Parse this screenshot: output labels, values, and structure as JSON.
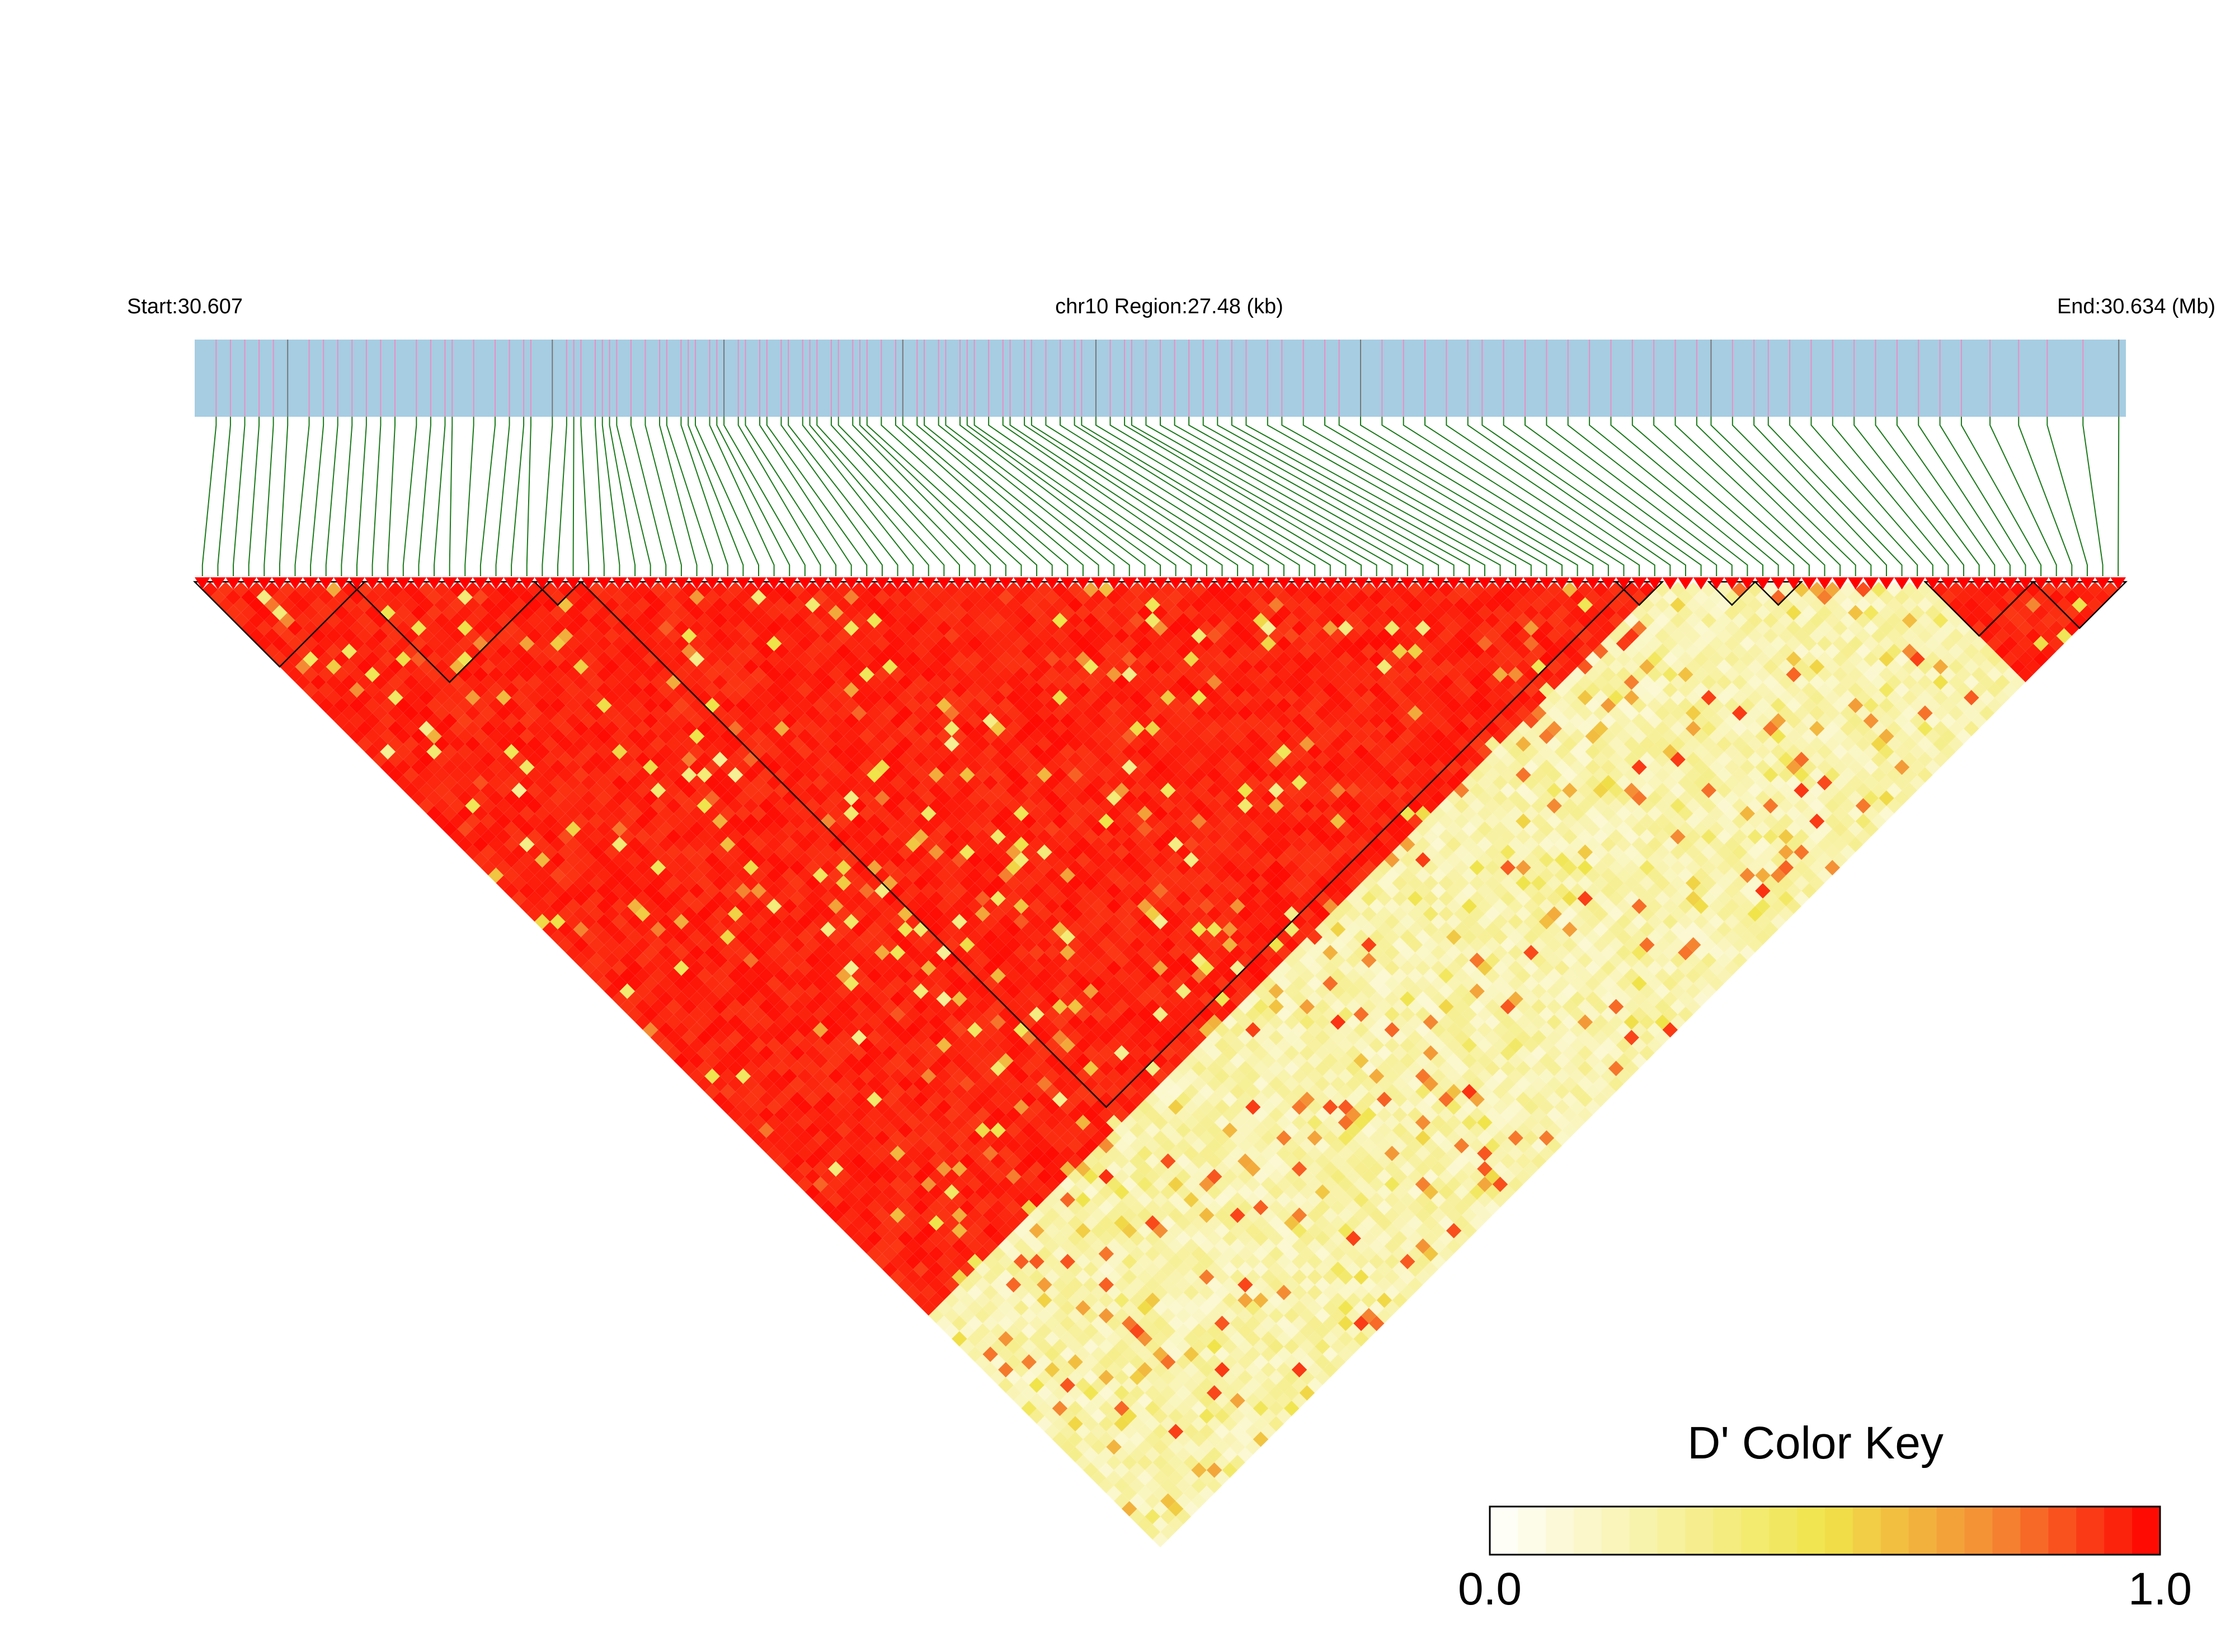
{
  "header": {
    "start_label": "Start:30.607",
    "region_label": "chr10 Region:27.48 (kb)",
    "end_label": "End:30.634 (Mb)"
  },
  "colors": {
    "gene_track": "#a6cde2",
    "snp_tick": "#e88fc4",
    "snp_tick_dark": "#777777",
    "connector": "#1a7a1a",
    "ld_max": "#ff0000",
    "ld_mid": "#f0e44a",
    "ld_min": "#ffffff",
    "block_outline": "#000000"
  },
  "chart_data": {
    "type": "heatmap",
    "title": "",
    "chromosome": "chr10",
    "region_kb": 27.48,
    "start_mb": 30.607,
    "end_mb": 30.634,
    "snp_count": 125,
    "snp_positions_mb": [
      30.6073,
      30.6075,
      30.6077,
      30.6079,
      30.6081,
      30.6083,
      30.6086,
      30.6088,
      30.609,
      30.6092,
      30.6094,
      30.6096,
      30.6098,
      30.6101,
      30.6103,
      30.6105,
      30.6106,
      30.6109,
      30.6112,
      30.6114,
      30.6116,
      30.6117,
      30.612,
      30.6122,
      30.6123,
      30.6124,
      30.6126,
      30.6127,
      30.6128,
      30.6129,
      30.6131,
      30.6133,
      30.6135,
      30.6136,
      30.6138,
      30.6139,
      30.614,
      30.6142,
      30.6143,
      30.6144,
      30.6146,
      30.6147,
      30.6149,
      30.615,
      30.6152,
      30.6153,
      30.6155,
      30.6156,
      30.6157,
      30.6159,
      30.616,
      30.6162,
      30.6163,
      30.6164,
      30.6166,
      30.6168,
      30.6169,
      30.6171,
      30.6172,
      30.6174,
      30.6175,
      30.6177,
      30.6178,
      30.6179,
      30.6181,
      30.6183,
      30.6184,
      30.6186,
      30.6187,
      30.6189,
      30.6191,
      30.6193,
      30.6194,
      30.6196,
      30.6198,
      30.62,
      30.6201,
      30.6203,
      30.6205,
      30.6207,
      30.6209,
      30.6211,
      30.6213,
      30.6215,
      30.6217,
      30.622,
      30.6222,
      30.6225,
      30.6228,
      30.623,
      30.6233,
      30.6236,
      30.6239,
      30.6242,
      30.6245,
      30.6248,
      30.625,
      30.6253,
      30.6256,
      30.6259,
      30.6262,
      30.6265,
      30.6268,
      30.6271,
      30.6274,
      30.6277,
      30.628,
      30.6282,
      30.6285,
      30.6288,
      30.629,
      30.6293,
      30.6296,
      30.6299,
      30.6302,
      30.6305,
      30.6308,
      30.6311,
      30.6314,
      30.6317,
      30.6321,
      30.6325,
      30.6329,
      30.6334,
      30.6339
    ],
    "haplotype_blocks": [
      {
        "first_snp": 1,
        "last_snp": 11
      },
      {
        "first_snp": 11,
        "last_snp": 23
      },
      {
        "first_snp": 23,
        "last_snp": 25
      },
      {
        "first_snp": 26,
        "last_snp": 93
      },
      {
        "first_snp": 93,
        "last_snp": 95
      },
      {
        "first_snp": 99,
        "last_snp": 101
      },
      {
        "first_snp": 102,
        "last_snp": 104
      },
      {
        "first_snp": 113,
        "last_snp": 119
      },
      {
        "first_snp": 120,
        "last_snp": 125
      }
    ],
    "ld_pattern": {
      "metric": "D'",
      "high_ld_region_snps": [
        1,
        95
      ],
      "high_ld_tail_snps": [
        113,
        125
      ],
      "high_ld_value": 0.98,
      "low_ld_value": 0.12
    },
    "color_key": {
      "title": "D' Color Key",
      "min_label": "0.0",
      "max_label": "1.0",
      "min": 0.0,
      "max": 1.0,
      "steps": 24
    }
  }
}
